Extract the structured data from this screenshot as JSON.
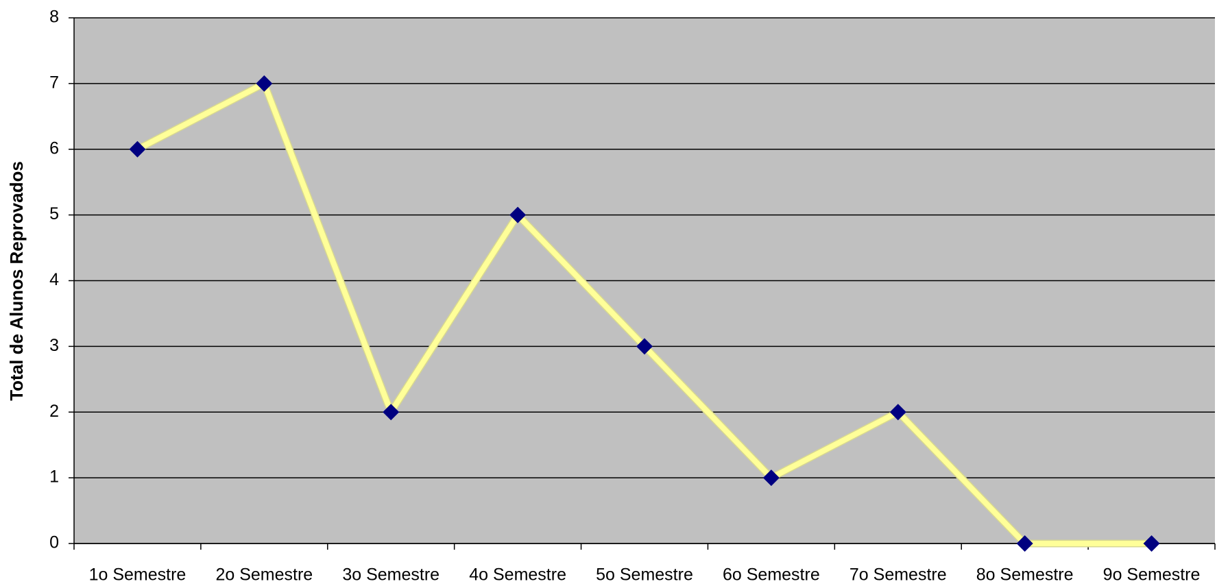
{
  "chart_data": {
    "type": "line",
    "y_label": "Total de Alunos Reprovados",
    "categories": [
      "1o Semestre",
      "2o Semestre",
      "3o Semestre",
      "4o Semestre",
      "5o Semestre",
      "6o Semestre",
      "7o Semestre",
      "8o Semestre",
      "9o Semestre"
    ],
    "values": [
      6,
      7,
      2,
      5,
      3,
      1,
      2,
      0,
      0
    ],
    "color": "#ffff99",
    "marker_color": "#000080",
    "background": "#c0c0c0",
    "ylim": [
      0,
      8
    ],
    "yticks": [
      0,
      1,
      2,
      3,
      4,
      5,
      6,
      7,
      8
    ],
    "grid": true
  }
}
